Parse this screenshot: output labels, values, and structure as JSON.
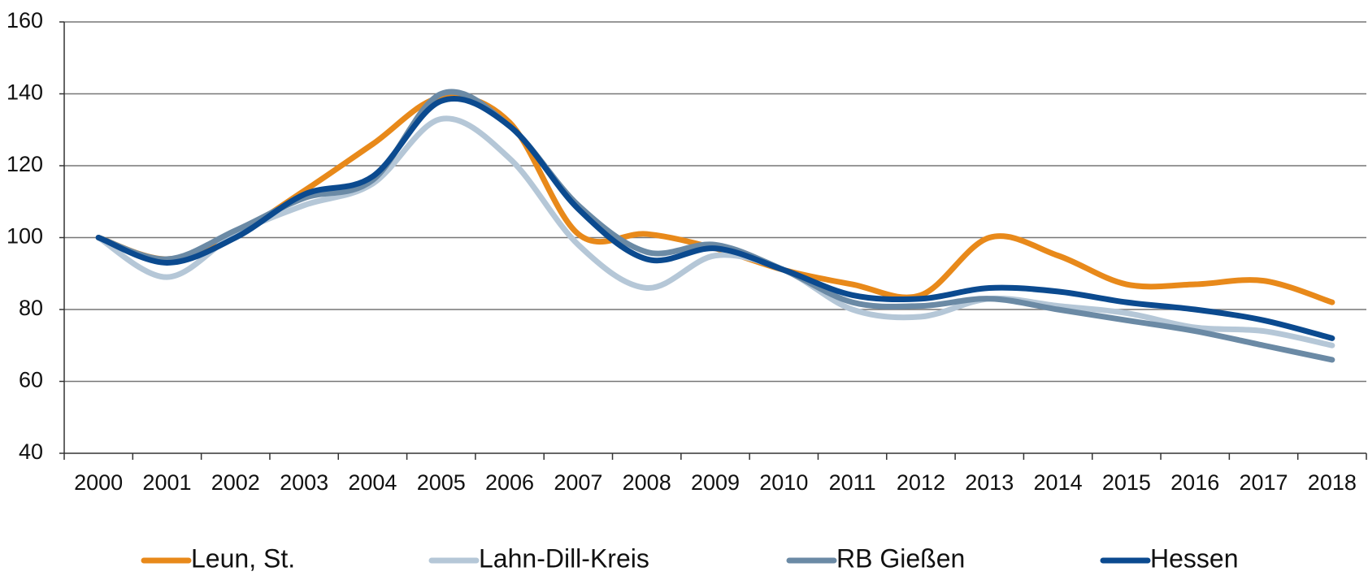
{
  "chart_data": {
    "type": "line",
    "categories": [
      "2000",
      "2001",
      "2002",
      "2003",
      "2004",
      "2005",
      "2006",
      "2007",
      "2008",
      "2009",
      "2010",
      "2011",
      "2012",
      "2013",
      "2014",
      "2015",
      "2016",
      "2017",
      "2018"
    ],
    "series": [
      {
        "name": "Leun, St.",
        "color": "#e8891a",
        "values": [
          100,
          94,
          101,
          113,
          126,
          139,
          132,
          101,
          101,
          97,
          91,
          87,
          84,
          100,
          95,
          87,
          87,
          88,
          82
        ]
      },
      {
        "name": "Lahn-Dill-Kreis",
        "color": "#b5c7d7",
        "values": [
          100,
          89,
          101,
          109,
          115,
          133,
          122,
          98,
          86,
          95,
          91,
          80,
          78,
          83,
          81,
          79,
          75,
          74,
          70
        ]
      },
      {
        "name": "RB Gießen",
        "color": "#6b8aa5",
        "values": [
          100,
          94,
          102,
          111,
          116,
          140,
          131,
          109,
          96,
          98,
          91,
          82,
          81,
          83,
          80,
          77,
          74,
          70,
          66
        ]
      },
      {
        "name": "Hessen",
        "color": "#0b4a8f",
        "values": [
          100,
          93,
          100,
          112,
          117,
          138,
          131,
          108,
          94,
          97,
          91,
          84,
          83,
          86,
          85,
          82,
          80,
          77,
          72
        ]
      }
    ],
    "ylim": [
      40,
      160
    ],
    "yticks": [
      40,
      60,
      80,
      100,
      120,
      140,
      160
    ],
    "grid": true,
    "legend": "bottom"
  }
}
